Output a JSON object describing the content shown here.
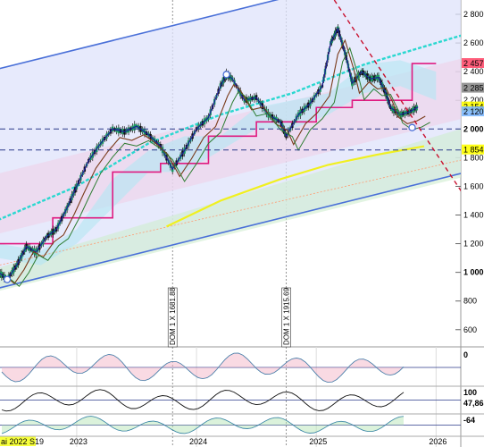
{
  "chart_data": {
    "type": "candlestick",
    "title": "",
    "y_ticks": [
      "2 800",
      "2 600",
      "2 400",
      "2 200",
      "2 000",
      "1 800",
      "1 600",
      "1 400",
      "1 200",
      "1 000",
      "800",
      "600"
    ],
    "y_tick_values": [
      2800,
      2600,
      2400,
      2200,
      2000,
      1800,
      1600,
      1400,
      1200,
      1000,
      800,
      600
    ],
    "ylim": [
      480,
      2900
    ],
    "x_ticks": [
      "2023",
      "2024",
      "2025",
      "2026"
    ],
    "x_tick_values": [
      2023.0,
      2024.0,
      2025.0,
      2026.0
    ],
    "x_start_label": "ai 2022 S19",
    "xlim": [
      2022.3,
      2026.4
    ],
    "price_labels": [
      {
        "text": "2 457",
        "value": 2457,
        "color": "#ff4d6d"
      },
      {
        "text": "2 285",
        "value": 2285,
        "color": "#8b8b8b"
      },
      {
        "text": "2 154",
        "value": 2154,
        "color": "#ffff00"
      },
      {
        "text": "2 120",
        "value": 2120,
        "color": "#7db8ff"
      },
      {
        "text": "1 854",
        "value": 1854,
        "color": "#ffff00"
      }
    ],
    "vertical_markers": [
      {
        "x": 2023.8,
        "text": "DOM 1 X 1681.88"
      },
      {
        "x": 2024.75,
        "text": "DOM 1 X 1915.69"
      }
    ],
    "price_series": [
      [
        2022.35,
        1000
      ],
      [
        2022.42,
        950
      ],
      [
        2022.5,
        1050
      ],
      [
        2022.58,
        1180
      ],
      [
        2022.66,
        1140
      ],
      [
        2022.75,
        1250
      ],
      [
        2022.83,
        1300
      ],
      [
        2022.92,
        1450
      ],
      [
        2023.0,
        1600
      ],
      [
        2023.1,
        1780
      ],
      [
        2023.2,
        1900
      ],
      [
        2023.3,
        2000
      ],
      [
        2023.4,
        1980
      ],
      [
        2023.5,
        2020
      ],
      [
        2023.6,
        1960
      ],
      [
        2023.7,
        1880
      ],
      [
        2023.8,
        1720
      ],
      [
        2023.9,
        1850
      ],
      [
        2024.0,
        2000
      ],
      [
        2024.1,
        2080
      ],
      [
        2024.2,
        2300
      ],
      [
        2024.25,
        2380
      ],
      [
        2024.3,
        2350
      ],
      [
        2024.4,
        2200
      ],
      [
        2024.5,
        2220
      ],
      [
        2024.6,
        2100
      ],
      [
        2024.7,
        2050
      ],
      [
        2024.75,
        1950
      ],
      [
        2024.85,
        2100
      ],
      [
        2024.95,
        2180
      ],
      [
        2025.05,
        2300
      ],
      [
        2025.12,
        2600
      ],
      [
        2025.18,
        2700
      ],
      [
        2025.25,
        2500
      ],
      [
        2025.3,
        2320
      ],
      [
        2025.38,
        2400
      ],
      [
        2025.45,
        2350
      ],
      [
        2025.52,
        2360
      ],
      [
        2025.58,
        2250
      ],
      [
        2025.62,
        2150
      ],
      [
        2025.7,
        2100
      ],
      [
        2025.78,
        2120
      ],
      [
        2025.85,
        2154
      ]
    ],
    "indicators": [
      {
        "name": "",
        "values_shown": [
          "0"
        ],
        "ylim": [
          -1,
          1
        ]
      },
      {
        "name": "",
        "values_shown": [
          "100",
          "47,865"
        ],
        "ylim": [
          0,
          100
        ]
      },
      {
        "name": "",
        "values_shown": [
          "-64"
        ],
        "ylim": [
          -100,
          0
        ]
      }
    ],
    "grid": true,
    "legend": "none"
  }
}
